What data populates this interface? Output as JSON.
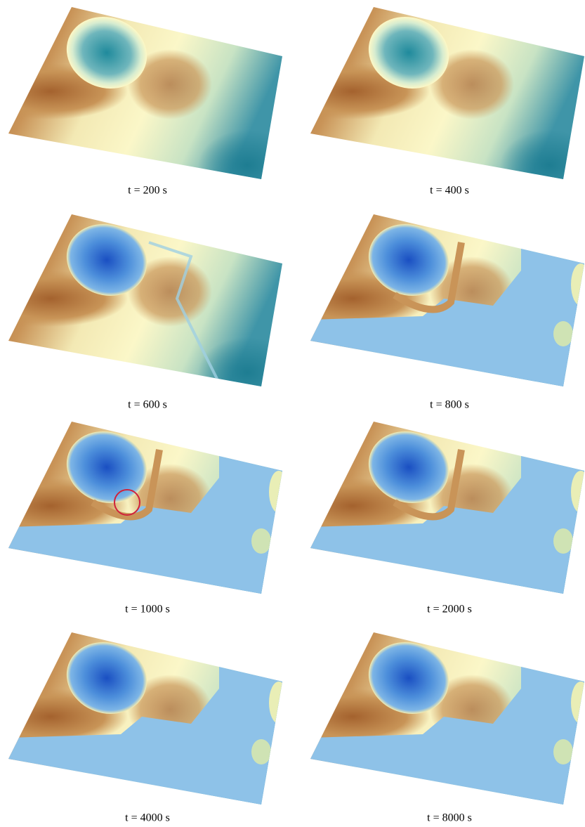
{
  "panels": [
    {
      "caption": "t = 200 s"
    },
    {
      "caption": "t = 400 s"
    },
    {
      "caption": "t = 600 s"
    },
    {
      "caption": "t = 800 s"
    },
    {
      "caption": "t = 1000 s"
    },
    {
      "caption": "t = 2000 s"
    },
    {
      "caption": "t = 4000 s"
    },
    {
      "caption": "t = 8000 s"
    }
  ]
}
